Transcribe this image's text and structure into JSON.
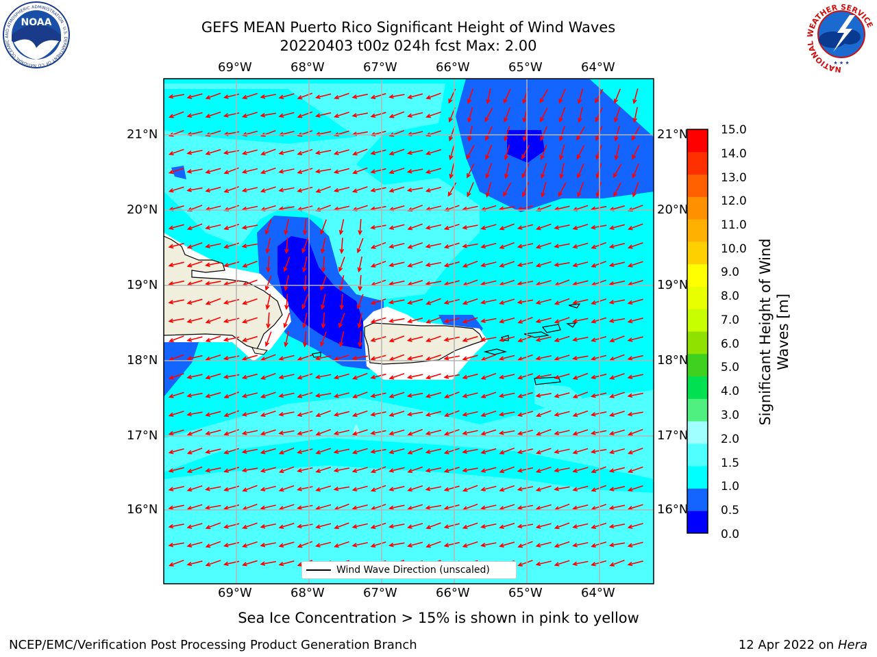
{
  "title": {
    "line1": "GEFS MEAN Puerto Rico Significant Height of Wind Waves",
    "line2": "20220403 t00z 024h fcst   Max: 2.00"
  },
  "lon_labels": [
    "69°W",
    "68°W",
    "67°W",
    "66°W",
    "65°W",
    "64°W"
  ],
  "lat_labels": [
    "21°N",
    "20°N",
    "19°N",
    "18°N",
    "17°N",
    "16°N"
  ],
  "colorbar": {
    "title_line1": "Significant Height of Wind",
    "title_line2": "Waves [m]",
    "tick_labels": [
      "15.0",
      "14.0",
      "13.0",
      "12.0",
      "11.0",
      "10.0",
      "9.0",
      "8.0",
      "7.0",
      "6.0",
      "5.0",
      "4.0",
      "3.0",
      "2.0",
      "1.5",
      "1.0",
      "0.5",
      "0.0"
    ],
    "colors": [
      "#0000ff",
      "#1464ff",
      "#00ffff",
      "#50ffff",
      "#a0ffff",
      "#50f080",
      "#00e050",
      "#40d020",
      "#90e000",
      "#c8ff00",
      "#e8ff00",
      "#ffff00",
      "#ffd000",
      "#ffb000",
      "#ff9000",
      "#ff6000",
      "#ff3000",
      "#ff0000"
    ]
  },
  "legend_label": "Wind Wave Direction (unscaled)",
  "ice_note": "Sea Ice Concentration > 15% is shown in pink to yellow",
  "footer": {
    "left": "NCEP/EMC/Verification Post Processing Product Generation Branch",
    "right_prefix": "12 Apr 2022 on ",
    "right_machine": "Hera"
  },
  "logos": {
    "noaa": "NOAA",
    "noaa_ring": "NATIONAL OCEANIC AND ATMOSPHERIC ADMINISTRATION · U.S. DEPARTMENT OF COMMERCE",
    "nws_ring": "NATIONAL WEATHER SERVICE"
  },
  "map_colors": {
    "land": "#f0eedc",
    "arrow": "#ff0000",
    "grid": "#b4b4b4"
  }
}
